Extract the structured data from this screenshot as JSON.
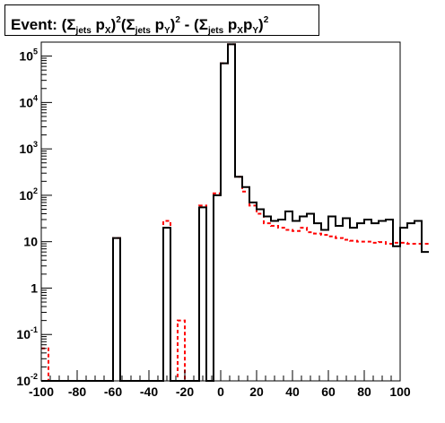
{
  "chart_data": {
    "type": "step-histogram",
    "title": {
      "prefix": "Event: (",
      "sigma": "Σ",
      "jets": "jets",
      "px_p": "p",
      "px_sub": "X",
      "close": ")",
      "sq": "2",
      "open": "(",
      "py_sub": "Y",
      "minus": " - (",
      "pxpy_x": "X",
      "pxpy_p": "p",
      "pxpy_y": "Y"
    },
    "xlim": [
      -100,
      100
    ],
    "ylim": [
      0.01,
      200000
    ],
    "y_scale": "log",
    "x_ticks": [
      "-100",
      "-80",
      "-60",
      "-40",
      "-20",
      "0",
      "20",
      "40",
      "60",
      "80",
      "100"
    ],
    "y_ticks": [
      {
        "value": 100000,
        "base": "10",
        "exp": "5"
      },
      {
        "value": 10000,
        "base": "10",
        "exp": "4"
      },
      {
        "value": 1000,
        "base": "10",
        "exp": "3"
      },
      {
        "value": 100,
        "base": "10",
        "exp": "2"
      },
      {
        "value": 10,
        "base": "10",
        "exp": ""
      },
      {
        "value": 1,
        "base": "1",
        "exp": ""
      },
      {
        "value": 0.1,
        "base": "10",
        "exp": "-1"
      },
      {
        "value": 0.01,
        "base": "10",
        "exp": "-2"
      }
    ],
    "bin_width": 4,
    "x_start": -100,
    "series": [
      {
        "color": "#000000",
        "dash": "solid",
        "values": [
          0.01,
          0.01,
          0.01,
          0.01,
          0.01,
          0.01,
          0.01,
          0.01,
          0.01,
          0.01,
          12,
          0.01,
          0.01,
          0.01,
          0.01,
          0.01,
          0.01,
          20,
          0.01,
          0.01,
          0.01,
          0.01,
          55,
          0.01,
          100,
          70000,
          180000,
          250,
          150,
          70,
          50,
          35,
          28,
          30,
          45,
          28,
          35,
          40,
          25,
          18,
          35,
          22,
          32,
          20,
          25,
          30,
          25,
          28,
          30,
          8,
          20,
          25,
          28,
          6
        ]
      },
      {
        "color": "#ff0000",
        "dash": "dashed",
        "values": [
          0.05,
          0.01,
          0.01,
          0.01,
          0.01,
          0.01,
          0.01,
          0.01,
          0.01,
          0.01,
          12,
          0.01,
          0.01,
          0.01,
          0.01,
          0.01,
          0.01,
          28,
          0.01,
          0.2,
          0.01,
          0.01,
          60,
          0.01,
          110,
          70000,
          180000,
          250,
          120,
          60,
          40,
          25,
          22,
          20,
          18,
          17,
          20,
          16,
          15,
          14,
          13,
          12,
          11,
          10.5,
          10,
          10,
          9.5,
          9.8,
          9,
          9.5,
          9.5,
          9,
          9,
          9
        ]
      }
    ]
  }
}
